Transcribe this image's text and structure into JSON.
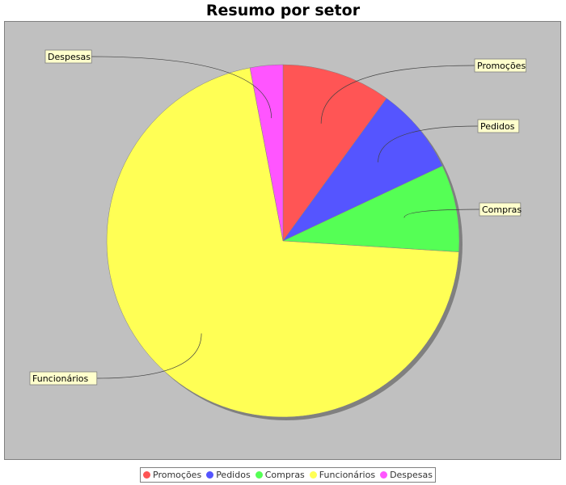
{
  "chart_data": {
    "type": "pie",
    "title": "Resumo por setor",
    "categories": [
      "Promoções",
      "Pedidos",
      "Compras",
      "Funcionários",
      "Despesas"
    ],
    "values": [
      10,
      8,
      8,
      71,
      3
    ],
    "colors": [
      "#ff5555",
      "#5555ff",
      "#55ff55",
      "#ffff55",
      "#ff55ff"
    ],
    "legend_position": "bottom",
    "label_background": "#ffffcc",
    "plot_background": "#c0c0c0"
  },
  "legend": {
    "items": [
      {
        "label": "Promoções",
        "color": "#ff5555"
      },
      {
        "label": "Pedidos",
        "color": "#5555ff"
      },
      {
        "label": "Compras",
        "color": "#55ff55"
      },
      {
        "label": "Funcionários",
        "color": "#ffff55"
      },
      {
        "label": "Despesas",
        "color": "#ff55ff"
      }
    ]
  }
}
